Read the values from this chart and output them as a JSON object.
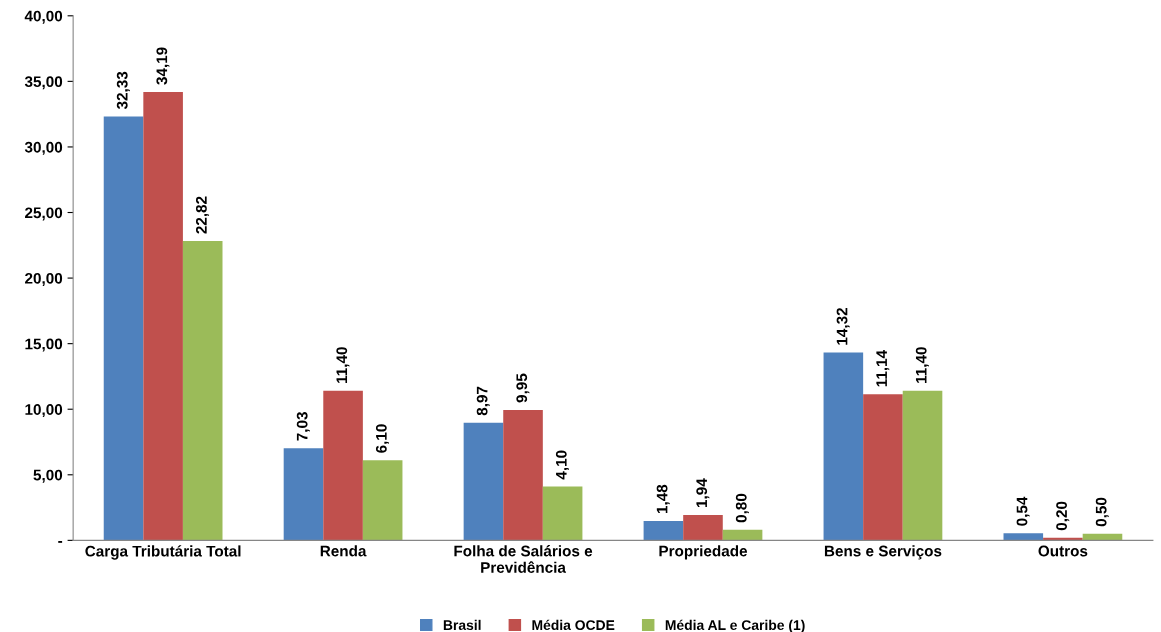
{
  "chart_data": {
    "type": "bar",
    "categories": [
      "Carga Tributária Total",
      "Renda",
      "Folha de Salários e\nPrevidência",
      "Propriedade",
      "Bens e Serviços",
      "Outros"
    ],
    "series": [
      {
        "name": "Brasil",
        "color": "#4f81bd",
        "values": [
          32.33,
          7.03,
          8.97,
          1.48,
          14.32,
          0.54
        ],
        "value_labels": [
          "32,33",
          "7,03",
          "8,97",
          "1,48",
          "14,32",
          "0,54"
        ]
      },
      {
        "name": "Média OCDE",
        "color": "#c0504d",
        "values": [
          34.19,
          11.4,
          9.95,
          1.94,
          11.14,
          0.2
        ],
        "value_labels": [
          "34,19",
          "11,40",
          "9,95",
          "1,94",
          "11,14",
          "0,20"
        ]
      },
      {
        "name": "Média AL e Caribe (1)",
        "color": "#9bbb59",
        "values": [
          22.82,
          6.1,
          4.1,
          0.8,
          11.4,
          0.5
        ],
        "value_labels": [
          "22,82",
          "6,10",
          "4,10",
          "0,80",
          "11,40",
          "0,50"
        ]
      }
    ],
    "ylim": [
      0,
      40
    ],
    "yticks": [
      {
        "value": 0,
        "label": "-"
      },
      {
        "value": 5,
        "label": "5,00"
      },
      {
        "value": 10,
        "label": "10,00"
      },
      {
        "value": 15,
        "label": "15,00"
      },
      {
        "value": 20,
        "label": "20,00"
      },
      {
        "value": 25,
        "label": "25,00"
      },
      {
        "value": 30,
        "label": "30,00"
      },
      {
        "value": 35,
        "label": "35,00"
      },
      {
        "value": 40,
        "label": "40,00"
      }
    ],
    "grid": false,
    "legend": "bottom"
  }
}
